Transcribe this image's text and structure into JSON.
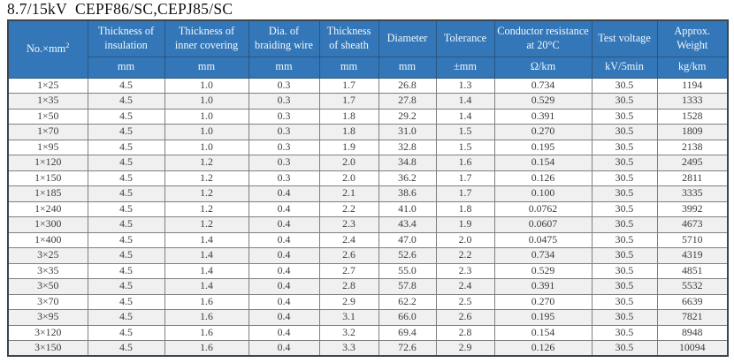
{
  "page_title": "8.7/15kV  CEPF86/SC,CEPJ85/SC",
  "colors": {
    "header_bg": "#3377b8",
    "header_text": "#f3f8fd",
    "alt_row_bg": "#f0f0f0",
    "row_bg": "#ffffff",
    "data_text": "#3c3c3c",
    "outer_border": "#3a4650",
    "cell_border": "#7f7f7f",
    "header_separator": "#a6c4e0"
  },
  "table": {
    "size_header": {
      "main": "No.×mm",
      "sup": "2"
    },
    "headers": [
      "Thickness of insulation",
      "Thickness of inner covering",
      "Dia. of braiding wire",
      "Thickness of sheath",
      "Diameter",
      "Tolerance",
      "Conductor resistance at 20°C",
      "Test voltage",
      "Approx. Weight"
    ],
    "units": [
      "mm",
      "mm",
      "mm",
      "mm",
      "mm",
      "±mm",
      "Ω/km",
      "kV/5min",
      "kg/km"
    ],
    "rows": [
      [
        "1×25",
        "4.5",
        "1.0",
        "0.3",
        "1.7",
        "26.8",
        "1.3",
        "0.734",
        "30.5",
        "1194"
      ],
      [
        "1×35",
        "4.5",
        "1.0",
        "0.3",
        "1.7",
        "27.8",
        "1.4",
        "0.529",
        "30.5",
        "1333"
      ],
      [
        "1×50",
        "4.5",
        "1.0",
        "0.3",
        "1.8",
        "29.2",
        "1.4",
        "0.391",
        "30.5",
        "1528"
      ],
      [
        "1×70",
        "4.5",
        "1.0",
        "0.3",
        "1.8",
        "31.0",
        "1.5",
        "0.270",
        "30.5",
        "1809"
      ],
      [
        "1×95",
        "4.5",
        "1.0",
        "0.3",
        "1.9",
        "32.8",
        "1.5",
        "0.195",
        "30.5",
        "2138"
      ],
      [
        "1×120",
        "4.5",
        "1.2",
        "0.3",
        "2.0",
        "34.8",
        "1.6",
        "0.154",
        "30.5",
        "2495"
      ],
      [
        "1×150",
        "4.5",
        "1.2",
        "0.3",
        "2.0",
        "36.2",
        "1.7",
        "0.126",
        "30.5",
        "2811"
      ],
      [
        "1×185",
        "4.5",
        "1.2",
        "0.4",
        "2.1",
        "38.6",
        "1.7",
        "0.100",
        "30.5",
        "3335"
      ],
      [
        "1×240",
        "4.5",
        "1.2",
        "0.4",
        "2.2",
        "41.0",
        "1.8",
        "0.0762",
        "30.5",
        "3992"
      ],
      [
        "1×300",
        "4.5",
        "1.2",
        "0.4",
        "2.3",
        "43.4",
        "1.9",
        "0.0607",
        "30.5",
        "4673"
      ],
      [
        "1×400",
        "4.5",
        "1.4",
        "0.4",
        "2.4",
        "47.0",
        "2.0",
        "0.0475",
        "30.5",
        "5710"
      ],
      [
        "3×25",
        "4.5",
        "1.4",
        "0.4",
        "2.6",
        "52.6",
        "2.2",
        "0.734",
        "30.5",
        "4319"
      ],
      [
        "3×35",
        "4.5",
        "1.4",
        "0.4",
        "2.7",
        "55.0",
        "2.3",
        "0.529",
        "30.5",
        "4851"
      ],
      [
        "3×50",
        "4.5",
        "1.4",
        "0.4",
        "2.8",
        "57.8",
        "2.4",
        "0.391",
        "30.5",
        "5532"
      ],
      [
        "3×70",
        "4.5",
        "1.6",
        "0.4",
        "2.9",
        "62.2",
        "2.5",
        "0.270",
        "30.5",
        "6639"
      ],
      [
        "3×95",
        "4.5",
        "1.6",
        "0.4",
        "3.1",
        "66.0",
        "2.6",
        "0.195",
        "30.5",
        "7821"
      ],
      [
        "3×120",
        "4.5",
        "1.6",
        "0.4",
        "3.2",
        "69.4",
        "2.8",
        "0.154",
        "30.5",
        "8948"
      ],
      [
        "3×150",
        "4.5",
        "1.6",
        "0.4",
        "3.3",
        "72.6",
        "2.9",
        "0.126",
        "30.5",
        "10094"
      ]
    ]
  }
}
